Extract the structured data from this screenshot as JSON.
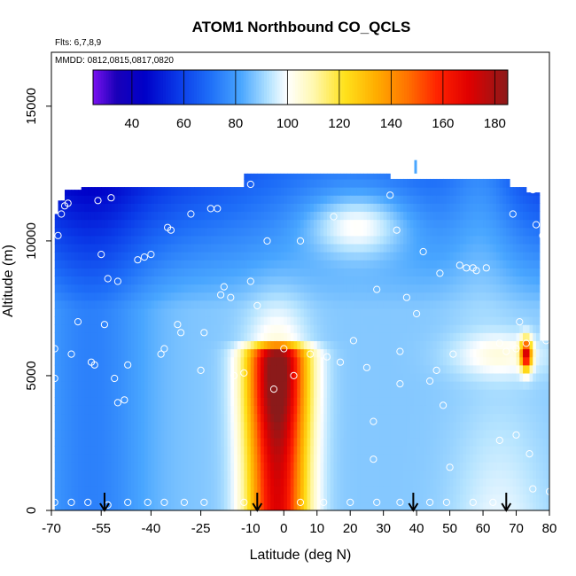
{
  "chart_data": {
    "type": "heatmap",
    "title": "ATOM1 Northbound CO_QCLS",
    "note_flights": "Flts: 6,7,8,9",
    "note_dates": "MMDD: 0812,0815,0817,0820",
    "xlabel": "Latitude (deg N)",
    "ylabel": "Altitude (m)",
    "xlim": [
      -70,
      80
    ],
    "ylim": [
      0,
      17000
    ],
    "x_ticks": [
      -70,
      -55,
      -40,
      -25,
      -10,
      0,
      10,
      20,
      30,
      40,
      50,
      60,
      70,
      80
    ],
    "x_tick_labels": [
      "-70",
      "-55",
      "-40",
      "-25",
      "-10",
      "0",
      "10",
      "20",
      "30",
      "40",
      "50",
      "60",
      "70",
      "80"
    ],
    "y_ticks": [
      0,
      5000,
      10000,
      15000
    ],
    "y_tick_labels": [
      "0",
      "5000",
      "10000",
      "15000"
    ],
    "colorbar": {
      "range": [
        25,
        185
      ],
      "ticks": [
        40,
        60,
        80,
        100,
        120,
        140,
        160,
        180
      ],
      "tick_labels": [
        "40",
        "60",
        "80",
        "100",
        "120",
        "140",
        "160",
        "180"
      ],
      "stops": [
        {
          "v": 25,
          "c": "#7a12f0"
        },
        {
          "v": 34,
          "c": "#1a00b8"
        },
        {
          "v": 45,
          "c": "#0000c8"
        },
        {
          "v": 58,
          "c": "#0a3ae8"
        },
        {
          "v": 70,
          "c": "#1e6ef8"
        },
        {
          "v": 82,
          "c": "#49a6ff"
        },
        {
          "v": 93,
          "c": "#b6e4ff"
        },
        {
          "v": 100,
          "c": "#ffffff"
        },
        {
          "v": 110,
          "c": "#fff8b0"
        },
        {
          "v": 122,
          "c": "#ffe21c"
        },
        {
          "v": 134,
          "c": "#ffae00"
        },
        {
          "v": 146,
          "c": "#ff7400"
        },
        {
          "v": 158,
          "c": "#ff2200"
        },
        {
          "v": 170,
          "c": "#e00000"
        },
        {
          "v": 185,
          "c": "#8b1a1a"
        }
      ]
    },
    "arrows_lat": [
      -54,
      -8,
      39,
      67
    ],
    "sample_points": [
      [
        -69,
        6000
      ],
      [
        -69,
        4900
      ],
      [
        -68,
        10200
      ],
      [
        -67,
        11000
      ],
      [
        -66,
        11300
      ],
      [
        -65,
        11400
      ],
      [
        -64,
        5800
      ],
      [
        -62,
        7000
      ],
      [
        -58,
        5500
      ],
      [
        -57,
        5400
      ],
      [
        -56,
        11500
      ],
      [
        -55,
        9500
      ],
      [
        -54,
        6900
      ],
      [
        -53,
        8600
      ],
      [
        -52,
        11600
      ],
      [
        -51,
        4900
      ],
      [
        -50,
        4000
      ],
      [
        -50,
        8500
      ],
      [
        -48,
        4100
      ],
      [
        -47,
        5400
      ],
      [
        -44,
        9300
      ],
      [
        -42,
        9400
      ],
      [
        -40,
        9500
      ],
      [
        -37,
        5800
      ],
      [
        -36,
        6000
      ],
      [
        -35,
        10500
      ],
      [
        -34,
        10400
      ],
      [
        -32,
        6900
      ],
      [
        -31,
        6600
      ],
      [
        -28,
        11000
      ],
      [
        -25,
        5200
      ],
      [
        -24,
        6600
      ],
      [
        -22,
        11200
      ],
      [
        -20,
        11200
      ],
      [
        -19,
        8000
      ],
      [
        -18,
        8300
      ],
      [
        -16,
        7900
      ],
      [
        -15,
        5000
      ],
      [
        -12,
        5100
      ],
      [
        -10,
        12100
      ],
      [
        -10,
        8500
      ],
      [
        -8,
        7600
      ],
      [
        -5,
        10000
      ],
      [
        -3,
        4500
      ],
      [
        0,
        6000
      ],
      [
        3,
        5000
      ],
      [
        5,
        10000
      ],
      [
        8,
        5800
      ],
      [
        13,
        5700
      ],
      [
        15,
        10900
      ],
      [
        17,
        5500
      ],
      [
        21,
        6300
      ],
      [
        25,
        5300
      ],
      [
        27,
        3300
      ],
      [
        27,
        1900
      ],
      [
        28,
        8200
      ],
      [
        32,
        11700
      ],
      [
        34,
        10400
      ],
      [
        35,
        5900
      ],
      [
        35,
        4700
      ],
      [
        37,
        7900
      ],
      [
        40,
        7300
      ],
      [
        42,
        9600
      ],
      [
        44,
        4800
      ],
      [
        46,
        5200
      ],
      [
        47,
        8800
      ],
      [
        48,
        3900
      ],
      [
        50,
        1600
      ],
      [
        51,
        5800
      ],
      [
        53,
        9100
      ],
      [
        55,
        9000
      ],
      [
        57,
        9000
      ],
      [
        58,
        8900
      ],
      [
        61,
        9000
      ],
      [
        65,
        2600
      ],
      [
        65,
        6200
      ],
      [
        67,
        5900
      ],
      [
        69,
        11000
      ],
      [
        70,
        2800
      ],
      [
        70,
        6000
      ],
      [
        71,
        7000
      ],
      [
        73,
        6200
      ],
      [
        74,
        2100
      ],
      [
        75,
        11900
      ],
      [
        76,
        10600
      ],
      [
        78,
        10200
      ],
      [
        79,
        6300
      ],
      [
        80,
        700
      ],
      [
        75,
        800
      ],
      [
        -69,
        300
      ],
      [
        -64,
        300
      ],
      [
        -59,
        300
      ],
      [
        -53,
        200
      ],
      [
        -47,
        300
      ],
      [
        -41,
        300
      ],
      [
        -36,
        300
      ],
      [
        -30,
        300
      ],
      [
        -24,
        300
      ],
      [
        -12,
        300
      ],
      [
        5,
        300
      ],
      [
        12,
        300
      ],
      [
        20,
        300
      ],
      [
        28,
        300
      ],
      [
        35,
        300
      ],
      [
        44,
        300
      ],
      [
        49,
        300
      ],
      [
        57,
        300
      ],
      [
        63,
        300
      ]
    ]
  }
}
